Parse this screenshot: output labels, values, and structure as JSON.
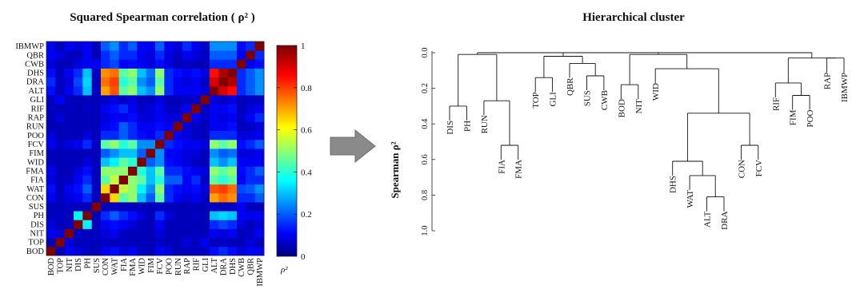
{
  "chart_data": [
    {
      "type": "heatmap",
      "title": "Squared Spearman correlation ( ρ² )",
      "colorbar_label": "ρ²",
      "colorbar_ticks": [
        "0",
        "0.2",
        "0.4",
        "0.6",
        "0.8",
        "1"
      ],
      "colormap": "jet",
      "ylim": [
        0,
        1
      ],
      "labels": [
        "BOD",
        "TOP",
        "NIT",
        "DIS",
        "PH",
        "SUS",
        "CON",
        "WAT",
        "FIA",
        "FMA",
        "WID",
        "FIM",
        "FCV",
        "POO",
        "RUN",
        "RAP",
        "RIF",
        "GLI",
        "ALT",
        "DRA",
        "DHS",
        "CWB",
        "QBR",
        "IBMWP"
      ],
      "values": [
        [
          1.0,
          0.05,
          0.1,
          0.08,
          0.06,
          0.05,
          0.1,
          0.12,
          0.08,
          0.1,
          0.06,
          0.05,
          0.1,
          0.08,
          0.05,
          0.05,
          0.06,
          0.06,
          0.12,
          0.15,
          0.12,
          0.08,
          0.1,
          0.1
        ],
        [
          0.05,
          1.0,
          0.08,
          0.05,
          0.06,
          0.05,
          0.06,
          0.05,
          0.06,
          0.05,
          0.05,
          0.05,
          0.06,
          0.05,
          0.05,
          0.08,
          0.05,
          0.1,
          0.05,
          0.06,
          0.05,
          0.05,
          0.08,
          0.05
        ],
        [
          0.1,
          0.08,
          1.0,
          0.06,
          0.05,
          0.06,
          0.08,
          0.1,
          0.06,
          0.05,
          0.05,
          0.05,
          0.08,
          0.05,
          0.05,
          0.05,
          0.06,
          0.05,
          0.1,
          0.08,
          0.1,
          0.05,
          0.06,
          0.1
        ],
        [
          0.08,
          0.05,
          0.06,
          1.0,
          0.35,
          0.05,
          0.1,
          0.12,
          0.1,
          0.08,
          0.05,
          0.05,
          0.1,
          0.05,
          0.05,
          0.05,
          0.05,
          0.05,
          0.15,
          0.18,
          0.15,
          0.08,
          0.05,
          0.08
        ],
        [
          0.06,
          0.06,
          0.05,
          0.35,
          1.0,
          0.05,
          0.15,
          0.2,
          0.15,
          0.12,
          0.08,
          0.05,
          0.15,
          0.08,
          0.05,
          0.05,
          0.06,
          0.05,
          0.3,
          0.32,
          0.3,
          0.1,
          0.1,
          0.1
        ],
        [
          0.05,
          0.05,
          0.06,
          0.05,
          0.05,
          1.0,
          0.05,
          0.06,
          0.05,
          0.05,
          0.05,
          0.05,
          0.06,
          0.05,
          0.05,
          0.05,
          0.05,
          0.05,
          0.06,
          0.05,
          0.06,
          0.1,
          0.05,
          0.05
        ],
        [
          0.1,
          0.06,
          0.08,
          0.1,
          0.15,
          0.05,
          1.0,
          0.65,
          0.45,
          0.5,
          0.3,
          0.2,
          0.45,
          0.15,
          0.1,
          0.08,
          0.1,
          0.06,
          0.7,
          0.75,
          0.72,
          0.15,
          0.15,
          0.2
        ],
        [
          0.12,
          0.05,
          0.1,
          0.12,
          0.2,
          0.06,
          0.65,
          1.0,
          0.55,
          0.5,
          0.35,
          0.25,
          0.5,
          0.15,
          0.12,
          0.1,
          0.12,
          0.08,
          0.78,
          0.8,
          0.75,
          0.18,
          0.2,
          0.25
        ],
        [
          0.08,
          0.06,
          0.06,
          0.1,
          0.15,
          0.05,
          0.45,
          0.55,
          1.0,
          0.5,
          0.45,
          0.3,
          0.4,
          0.2,
          0.2,
          0.1,
          0.15,
          0.06,
          0.45,
          0.4,
          0.45,
          0.1,
          0.15,
          0.15
        ],
        [
          0.1,
          0.05,
          0.05,
          0.08,
          0.12,
          0.05,
          0.5,
          0.5,
          0.5,
          1.0,
          0.4,
          0.3,
          0.45,
          0.15,
          0.15,
          0.12,
          0.1,
          0.08,
          0.5,
          0.45,
          0.5,
          0.12,
          0.15,
          0.2
        ],
        [
          0.06,
          0.05,
          0.05,
          0.05,
          0.08,
          0.05,
          0.3,
          0.35,
          0.45,
          0.4,
          1.0,
          0.2,
          0.25,
          0.12,
          0.1,
          0.08,
          0.06,
          0.05,
          0.3,
          0.25,
          0.3,
          0.1,
          0.1,
          0.1
        ],
        [
          0.05,
          0.05,
          0.05,
          0.05,
          0.05,
          0.05,
          0.2,
          0.25,
          0.3,
          0.3,
          0.2,
          1.0,
          0.25,
          0.1,
          0.1,
          0.08,
          0.08,
          0.05,
          0.25,
          0.2,
          0.22,
          0.08,
          0.08,
          0.1
        ],
        [
          0.1,
          0.06,
          0.08,
          0.1,
          0.15,
          0.06,
          0.45,
          0.5,
          0.4,
          0.45,
          0.25,
          0.25,
          1.0,
          0.15,
          0.12,
          0.1,
          0.1,
          0.08,
          0.5,
          0.45,
          0.5,
          0.12,
          0.15,
          0.2
        ],
        [
          0.08,
          0.05,
          0.05,
          0.05,
          0.08,
          0.05,
          0.15,
          0.15,
          0.2,
          0.15,
          0.12,
          0.1,
          0.15,
          1.0,
          0.1,
          0.08,
          0.06,
          0.05,
          0.15,
          0.15,
          0.15,
          0.08,
          0.08,
          0.1
        ],
        [
          0.05,
          0.05,
          0.05,
          0.05,
          0.05,
          0.05,
          0.1,
          0.12,
          0.2,
          0.15,
          0.1,
          0.1,
          0.12,
          0.1,
          1.0,
          0.08,
          0.06,
          0.05,
          0.1,
          0.1,
          0.12,
          0.05,
          0.06,
          0.08
        ],
        [
          0.05,
          0.08,
          0.05,
          0.05,
          0.05,
          0.05,
          0.08,
          0.1,
          0.1,
          0.12,
          0.08,
          0.08,
          0.1,
          0.08,
          0.08,
          1.0,
          0.1,
          0.06,
          0.1,
          0.08,
          0.1,
          0.06,
          0.1,
          0.15
        ],
        [
          0.06,
          0.05,
          0.06,
          0.05,
          0.06,
          0.05,
          0.1,
          0.12,
          0.15,
          0.1,
          0.06,
          0.08,
          0.1,
          0.06,
          0.06,
          0.1,
          1.0,
          0.06,
          0.1,
          0.1,
          0.12,
          0.05,
          0.08,
          0.1
        ],
        [
          0.06,
          0.1,
          0.05,
          0.05,
          0.05,
          0.05,
          0.06,
          0.08,
          0.06,
          0.08,
          0.05,
          0.05,
          0.08,
          0.05,
          0.05,
          0.06,
          0.06,
          1.0,
          0.08,
          0.06,
          0.08,
          0.05,
          0.06,
          0.06
        ],
        [
          0.12,
          0.05,
          0.1,
          0.15,
          0.3,
          0.06,
          0.7,
          0.78,
          0.45,
          0.5,
          0.3,
          0.25,
          0.5,
          0.15,
          0.1,
          0.1,
          0.1,
          0.08,
          1.0,
          0.9,
          0.85,
          0.15,
          0.2,
          0.25
        ],
        [
          0.15,
          0.06,
          0.08,
          0.18,
          0.32,
          0.05,
          0.75,
          0.8,
          0.4,
          0.45,
          0.25,
          0.2,
          0.45,
          0.15,
          0.1,
          0.08,
          0.1,
          0.06,
          0.9,
          1.0,
          0.95,
          0.15,
          0.2,
          0.25
        ],
        [
          0.12,
          0.05,
          0.1,
          0.15,
          0.3,
          0.06,
          0.72,
          0.75,
          0.45,
          0.5,
          0.3,
          0.22,
          0.5,
          0.15,
          0.12,
          0.1,
          0.12,
          0.08,
          0.85,
          0.95,
          1.0,
          0.15,
          0.2,
          0.25
        ],
        [
          0.08,
          0.05,
          0.05,
          0.08,
          0.1,
          0.1,
          0.15,
          0.18,
          0.1,
          0.12,
          0.1,
          0.08,
          0.12,
          0.08,
          0.05,
          0.06,
          0.05,
          0.05,
          0.15,
          0.15,
          0.15,
          1.0,
          0.1,
          0.12
        ],
        [
          0.1,
          0.08,
          0.06,
          0.05,
          0.1,
          0.05,
          0.15,
          0.2,
          0.15,
          0.15,
          0.1,
          0.08,
          0.15,
          0.08,
          0.06,
          0.1,
          0.08,
          0.06,
          0.2,
          0.2,
          0.2,
          0.1,
          1.0,
          0.15
        ],
        [
          0.1,
          0.05,
          0.1,
          0.08,
          0.1,
          0.05,
          0.2,
          0.25,
          0.15,
          0.2,
          0.1,
          0.1,
          0.2,
          0.1,
          0.08,
          0.15,
          0.1,
          0.06,
          0.25,
          0.25,
          0.25,
          0.12,
          0.15,
          1.0
        ]
      ]
    },
    {
      "type": "dendrogram",
      "title": "Hierarchical cluster",
      "ylabel": "Spearman ρ²",
      "ylim": [
        0,
        1
      ],
      "yticks": [
        "0.0",
        "0.2",
        "0.4",
        "0.6",
        "0.8",
        "1.0"
      ],
      "leaves": [
        "DIS",
        "PH",
        "RUN",
        "FIA",
        "FMA",
        "TOP",
        "GLI",
        "QBR",
        "SUS",
        "CWB",
        "BOD",
        "NIT",
        "WID",
        "DHS",
        "WAT",
        "ALT",
        "DRA",
        "CON",
        "FCV",
        "RIF",
        "FIM",
        "POO",
        "RAP",
        "IBMWP"
      ],
      "merges": [
        {
          "a": "ALT",
          "b": "DRA",
          "h": 0.81
        },
        {
          "a": "FIA",
          "b": "FMA",
          "h": 0.52
        },
        {
          "a": "CON",
          "b": "FCV",
          "h": 0.52
        },
        {
          "a": "FIM",
          "b": "POO",
          "h": 0.24
        },
        {
          "a": "ALT-DRA",
          "b": "WAT",
          "h": 0.69
        },
        {
          "a": "DIS",
          "b": "PH",
          "h": 0.3
        },
        {
          "a": "DHS",
          "b": "WAT-ALT-DRA",
          "h": 0.61
        },
        {
          "a": "RUN",
          "b": "FIA-FMA",
          "h": 0.27
        },
        {
          "a": "DHS-group",
          "b": "CON-FCV",
          "h": 0.34
        },
        {
          "a": "BOD",
          "b": "NIT",
          "h": 0.18
        },
        {
          "a": "RIF",
          "b": "FIM-POO",
          "h": 0.17
        },
        {
          "a": "TOP",
          "b": "GLI",
          "h": 0.14
        },
        {
          "a": "SUS",
          "b": "CWB",
          "h": 0.13
        },
        {
          "a": "WID",
          "b": "DHS-CON-group",
          "h": 0.09
        },
        {
          "a": "RAP",
          "b": "IBMWP",
          "h": 0.03
        },
        {
          "a": "QBR",
          "b": "SUS-CWB",
          "h": 0.06
        },
        {
          "a": "TOP-GLI",
          "b": "QBR-SUS-CWB",
          "h": 0.02
        },
        {
          "a": "RIF-FIM-POO",
          "b": "RAP-IBMWP",
          "h": 0.03
        },
        {
          "a": "BOD-NIT",
          "b": "WID-group",
          "h": 0.01
        },
        {
          "a": "DIS-PH",
          "b": "RUN-FIA-FMA",
          "h": 0.01
        },
        {
          "a": "TOP-...-CWB",
          "b": "BOD-...-FCV",
          "h": 0.0
        },
        {
          "a": "DIS-...-FMA",
          "b": "TOP-...-FCV",
          "h": 0.0
        },
        {
          "a": "left",
          "b": "right",
          "h": 0.0
        }
      ]
    }
  ]
}
